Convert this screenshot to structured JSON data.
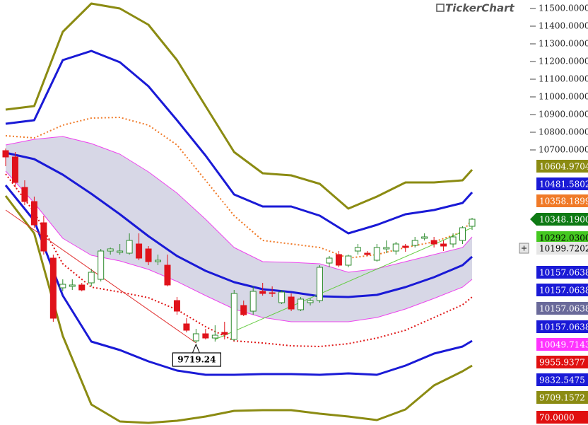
{
  "chart_data": {
    "type": "candlestick",
    "logo": "TickerChart",
    "ylim": [
      9144,
      11548
    ],
    "yticks": [
      {
        "value": 11500,
        "label": "11500.0000"
      },
      {
        "value": 11400,
        "label": "11400.0000"
      },
      {
        "value": 11300,
        "label": "11300.0000"
      },
      {
        "value": 11200,
        "label": "11200.0000"
      },
      {
        "value": 11100,
        "label": "11100.0000"
      },
      {
        "value": 11000,
        "label": "11000.0000"
      },
      {
        "value": 10900,
        "label": "10900.0000"
      },
      {
        "value": 10800,
        "label": "10800.0000"
      },
      {
        "value": 10700,
        "label": "10700.0000"
      }
    ],
    "candles": {
      "up_color": "#ffffff",
      "up_border": "#2e8b2e",
      "down_color": "#e0121b",
      "open": [
        10696,
        10660,
        10488,
        10408,
        10288,
        10088,
        9920,
        9928,
        9936,
        9948,
        9968,
        10128,
        10120,
        10116,
        10168,
        10140,
        10068,
        10048,
        9848,
        9716,
        9620,
        9660,
        9636,
        9668,
        9628,
        9820,
        9788,
        9900,
        9892,
        9836,
        9868,
        9796,
        9836,
        9848,
        10060,
        10108,
        10048,
        10128,
        10116,
        10076,
        10140,
        10128,
        10156,
        10160,
        10200,
        10188,
        10168,
        10168,
        10188,
        10268
      ],
      "high": [
        10708,
        10688,
        10528,
        10436,
        10328,
        10108,
        9968,
        9968,
        9948,
        10028,
        10140,
        10148,
        10168,
        10228,
        10228,
        10156,
        10108,
        10108,
        9868,
        9748,
        9688,
        9688,
        9708,
        9728,
        9908,
        9848,
        9928,
        9948,
        9928,
        9908,
        9888,
        9868,
        9860,
        10048,
        10100,
        10128,
        10108,
        10168,
        10128,
        10168,
        10188,
        10180,
        10168,
        10208,
        10228,
        10208,
        10188,
        10228,
        10268,
        10316
      ],
      "low": [
        10608,
        10488,
        10388,
        10260,
        10108,
        9728,
        9900,
        9908,
        9900,
        9928,
        9956,
        10108,
        10108,
        10108,
        10076,
        10048,
        10048,
        9928,
        9768,
        9668,
        9608,
        9628,
        9616,
        9628,
        9620,
        9760,
        9768,
        9876,
        9868,
        9828,
        9788,
        9788,
        9820,
        9836,
        10036,
        10036,
        10036,
        10108,
        10100,
        10068,
        10116,
        10108,
        10124,
        10148,
        10188,
        10148,
        10128,
        10148,
        10168,
        10248
      ],
      "close": [
        10660,
        10516,
        10408,
        10276,
        10128,
        9748,
        9940,
        9936,
        9908,
        10008,
        10128,
        10140,
        10128,
        10188,
        10088,
        10068,
        10076,
        9936,
        9788,
        9680,
        9660,
        9636,
        9652,
        9656,
        9888,
        9768,
        9900,
        9888,
        9888,
        9896,
        9800,
        9856,
        9848,
        10036,
        10088,
        10048,
        10100,
        10148,
        10108,
        10148,
        10148,
        10168,
        10148,
        10188,
        10208,
        10168,
        10156,
        10208,
        10260,
        10308
      ]
    },
    "bands": {
      "x": [
        0,
        3,
        6,
        9,
        12,
        15,
        18,
        21,
        24,
        27,
        30,
        33,
        36,
        39,
        42,
        45,
        48,
        49
      ],
      "fill_between": [
        3,
        5
      ],
      "fill_color": "#d7d7e6",
      "series": [
        {
          "color": "#8b8b12",
          "width": 3,
          "dash": false,
          "values": [
            10928,
            10948,
            11368,
            11528,
            11500,
            11408,
            11208,
            10948,
            10688,
            10568,
            10556,
            10508,
            10368,
            10436,
            10516,
            10516,
            10528,
            10588
          ]
        },
        {
          "color": "#1a1ad6",
          "width": 3,
          "dash": false,
          "values": [
            10848,
            10868,
            11208,
            11260,
            11196,
            11060,
            10868,
            10668,
            10448,
            10380,
            10380,
            10328,
            10228,
            10276,
            10336,
            10360,
            10400,
            10460
          ]
        },
        {
          "color": "#f07a28",
          "width": 2,
          "dash": true,
          "values": [
            10780,
            10768,
            10840,
            10880,
            10884,
            10840,
            10728,
            10528,
            10328,
            10188,
            10168,
            10148,
            10088,
            10108,
            10148,
            10180,
            10236,
            10308
          ]
        },
        {
          "color": "#ee44ee",
          "width": 1,
          "dash": false,
          "values": [
            10728,
            10760,
            10776,
            10736,
            10676,
            10576,
            10456,
            10308,
            10148,
            10068,
            10064,
            10056,
            10008,
            10028,
            10068,
            10108,
            10148,
            10208
          ]
        },
        {
          "color": "#1a1ad6",
          "width": 3,
          "dash": false,
          "values": [
            10684,
            10648,
            10560,
            10452,
            10336,
            10212,
            10100,
            10016,
            9952,
            9912,
            9896,
            9872,
            9868,
            9880,
            9924,
            9980,
            10048,
            10096
          ]
        },
        {
          "color": "#ee44ee",
          "width": 1,
          "dash": false,
          "values": [
            10580,
            10400,
            10200,
            10104,
            10072,
            10024,
            9956,
            9876,
            9800,
            9752,
            9728,
            9728,
            9728,
            9752,
            9800,
            9860,
            9924,
            9968
          ]
        },
        {
          "color": "#e01818",
          "width": 2,
          "dash": true,
          "values": [
            10564,
            10348,
            10056,
            9924,
            9896,
            9864,
            9796,
            9700,
            9620,
            9608,
            9592,
            9588,
            9604,
            9636,
            9680,
            9752,
            9824,
            9868
          ]
        },
        {
          "color": "#1a1ad6",
          "width": 3,
          "dash": false,
          "values": [
            10500,
            10300,
            9876,
            9616,
            9568,
            9504,
            9452,
            9428,
            9428,
            9432,
            9432,
            9428,
            9436,
            9428,
            9480,
            9548,
            9588,
            9620
          ]
        },
        {
          "color": "#8b8b12",
          "width": 3,
          "dash": false,
          "values": [
            10440,
            10228,
            9648,
            9260,
            9164,
            9156,
            9168,
            9192,
            9224,
            9228,
            9228,
            9208,
            9192,
            9172,
            9232,
            9368,
            9448,
            9480
          ]
        }
      ]
    },
    "trendlines": [
      {
        "color": "#e03030",
        "x": [
          0,
          20
        ],
        "values": [
          10360,
          9608
        ]
      },
      {
        "color": "#66cc44",
        "x": [
          22,
          49
        ],
        "values": [
          9628,
          10260
        ]
      }
    ],
    "annotation": {
      "label": "9719.24",
      "x": 20
    },
    "price_tags": [
      {
        "label": "10604.9704",
        "color": "#8b8b12",
        "text": "#ffffff"
      },
      {
        "label": "10481.5802",
        "color": "#1a1ad6",
        "text": "#ffffff"
      },
      {
        "label": "10358.1899",
        "color": "#f07a28",
        "text": "#ffffff"
      },
      {
        "label": "10348.1900",
        "color": "#0e7a14",
        "text": "#ffffff"
      },
      {
        "label": "10292.0300",
        "color": "#44c820",
        "text": "#000000"
      },
      {
        "label": "10199.7202",
        "color": "#e6e6e6",
        "text": "#000000"
      },
      {
        "label": "10157.0638",
        "color": "#1a1ad6",
        "text": "#ffffff"
      },
      {
        "label": "10157.0638",
        "color": "#1a1ad6",
        "text": "#ffffff"
      },
      {
        "label": "10157.0638",
        "color": "#6a6a9a",
        "text": "#ffffff"
      },
      {
        "label": "10157.0638",
        "color": "#1a1ad6",
        "text": "#ffffff"
      },
      {
        "label": "10049.7143",
        "color": "#ff33ff",
        "text": "#ffffff"
      },
      {
        "label": "9955.9377",
        "color": "#e01010",
        "text": "#ffffff"
      },
      {
        "label": "9832.5475",
        "color": "#1a1ad6",
        "text": "#ffffff"
      },
      {
        "label": "9709.1572",
        "color": "#8b8b12",
        "text": "#ffffff"
      },
      {
        "label": "70.0000",
        "color": "#e01010",
        "text": "#ffffff"
      }
    ]
  }
}
